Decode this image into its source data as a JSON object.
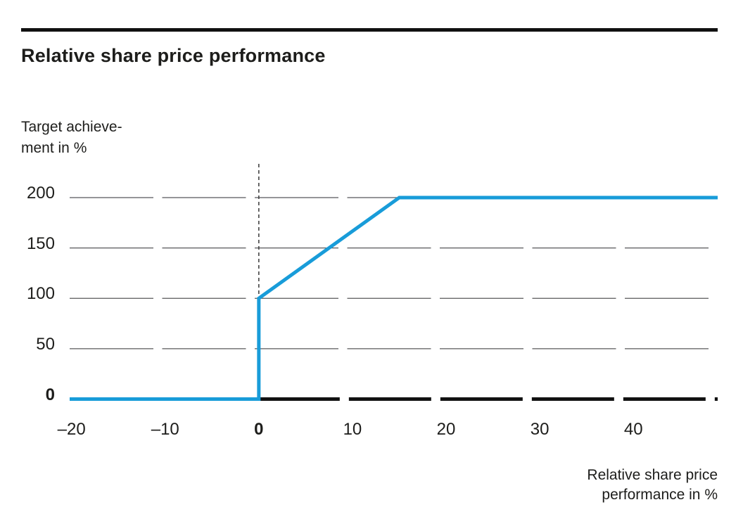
{
  "header": {
    "title": "Relative share price performance"
  },
  "y_axis_title": {
    "lines": [
      "Target achieve-",
      "ment in %"
    ]
  },
  "x_axis_title": {
    "lines": [
      "Relative share price",
      "performance in %"
    ]
  },
  "colors": {
    "line": "#189cd9",
    "grid": "#58585a",
    "axis": "#121212",
    "reference_dash": "#444444",
    "text": "#1d1d1b",
    "rule": "#111111"
  },
  "chart_data": {
    "type": "line",
    "title": "Relative share price performance",
    "xlabel": "Relative share price performance in %",
    "ylabel": "Target achievement in %",
    "xlim": [
      -20.2,
      49.0
    ],
    "ylim": [
      0,
      200
    ],
    "x_ticks": [
      -20,
      -10,
      0,
      10,
      20,
      30,
      40
    ],
    "x_tick_labels": [
      "–20",
      "–10",
      "0",
      "10",
      "20",
      "30",
      "40"
    ],
    "y_ticks": [
      0,
      50,
      100,
      150,
      200
    ],
    "y_tick_labels": [
      "0",
      "50",
      "100",
      "150",
      "200"
    ],
    "grid": "horizontal-dashed-segments",
    "legend": "none",
    "reference_line": {
      "x": 0,
      "style": "dashed-vertical"
    },
    "series": [
      {
        "name": "Target achievement vs relative share price performance",
        "color": "#189cd9",
        "points": [
          [
            -20.2,
            0
          ],
          [
            0,
            0
          ],
          [
            0,
            100
          ],
          [
            15,
            200
          ],
          [
            49.0,
            200
          ]
        ]
      }
    ],
    "key_values": {
      "payout_below_zero_performance": 0,
      "payout_at_zero_performance": 100,
      "cap_performance": 15,
      "cap_payout": 200
    }
  }
}
